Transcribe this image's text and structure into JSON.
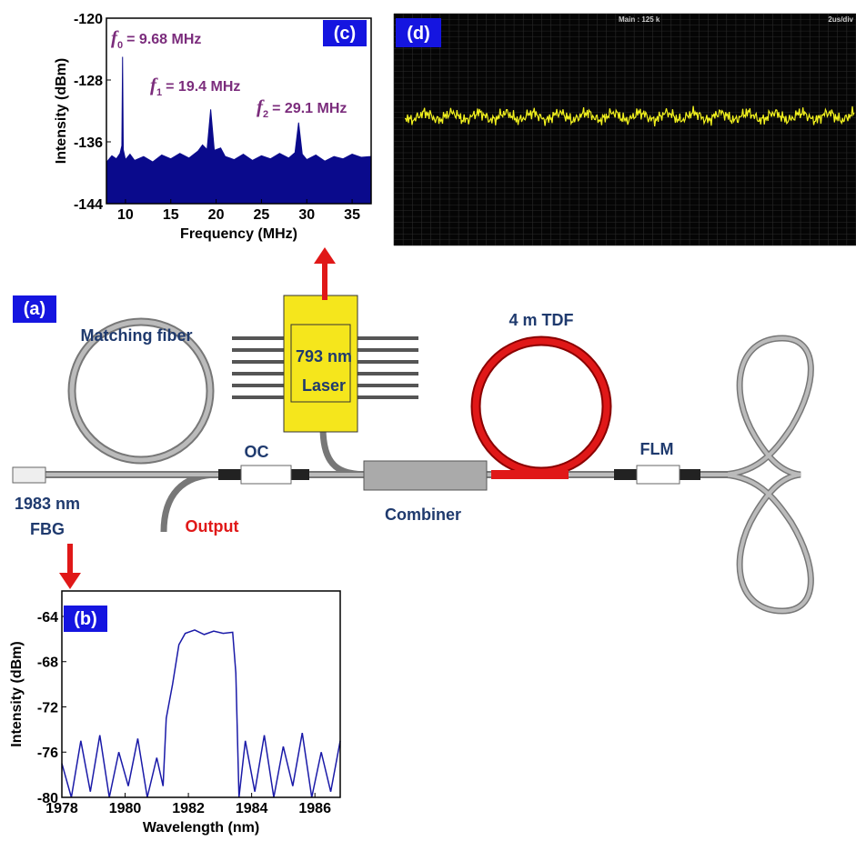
{
  "chart_data": [
    {
      "type": "area",
      "panel": "(c)",
      "xlabel": "Frequency (MHz)",
      "ylabel": "Intensity (dBm)",
      "color": "#0a0a8c",
      "x": [
        8,
        8.5,
        9,
        9.4,
        9.6,
        9.68,
        9.76,
        10,
        10.5,
        11,
        12,
        13,
        14,
        15,
        16,
        17,
        18,
        18.5,
        19,
        19.4,
        19.8,
        20.5,
        21,
        22,
        23,
        24,
        25,
        26,
        27,
        28,
        28.7,
        29.1,
        29.5,
        30,
        31,
        32,
        33,
        34,
        35,
        36,
        37
      ],
      "values": [
        -138.5,
        -137.8,
        -138.2,
        -137.5,
        -136.5,
        -125,
        -137,
        -138.3,
        -137.6,
        -138.4,
        -137.9,
        -138.6,
        -137.7,
        -138.2,
        -137.5,
        -138.1,
        -137.2,
        -136.4,
        -137,
        -131.8,
        -137.1,
        -136.8,
        -137.9,
        -138.3,
        -137.6,
        -138.4,
        -137.8,
        -138.2,
        -137.5,
        -138.1,
        -137.4,
        -133.5,
        -137.6,
        -138.3,
        -137.7,
        -138.5,
        -137.9,
        -138.2,
        -137.6,
        -138,
        -137.9
      ],
      "xlim": [
        7.9,
        37.1
      ],
      "xticks": [
        10,
        15,
        20,
        25,
        30,
        35
      ],
      "ylim": [
        -144,
        -120
      ],
      "yticks": [
        -144,
        -136,
        -128,
        -120
      ],
      "annotations": [
        {
          "symbol": "f",
          "subscript": "0",
          "text": "= 9.68 MHz"
        },
        {
          "symbol": "f",
          "subscript": "1",
          "text": "= 19.4 MHz"
        },
        {
          "symbol": "f",
          "subscript": "2",
          "text": "= 29.1 MHz"
        }
      ]
    },
    {
      "type": "line",
      "panel": "(b)",
      "xlabel": "Wavelength (nm)",
      "ylabel": "Intensity (dBm)",
      "color": "#1a1aa8",
      "x": [
        1978,
        1978.3,
        1978.6,
        1978.9,
        1979.2,
        1979.5,
        1979.8,
        1980.1,
        1980.4,
        1980.7,
        1981,
        1981.2,
        1981.3,
        1981.5,
        1981.7,
        1981.9,
        1982.2,
        1982.5,
        1982.8,
        1983.1,
        1983.4,
        1983.5,
        1983.6,
        1983.8,
        1984.1,
        1984.4,
        1984.7,
        1985,
        1985.3,
        1985.6,
        1985.9,
        1986.2,
        1986.5,
        1986.8
      ],
      "values": [
        -77,
        -80,
        -75,
        -79.5,
        -74.5,
        -80,
        -76,
        -79,
        -74.8,
        -80,
        -76.5,
        -79,
        -73,
        -70,
        -66.5,
        -65.5,
        -65.2,
        -65.6,
        -65.3,
        -65.5,
        -65.4,
        -69,
        -80,
        -75,
        -79.5,
        -74.5,
        -80,
        -75.5,
        -79,
        -74.3,
        -80,
        -76,
        -79.5,
        -75
      ],
      "xlim": [
        1978,
        1986.8
      ],
      "xticks": [
        1978,
        1980,
        1982,
        1984,
        1986
      ],
      "ylim": [
        -80,
        -61.75
      ],
      "yticks": [
        -80,
        -76,
        -72,
        -68,
        -64
      ]
    },
    {
      "type": "scope",
      "panel": "(d)",
      "header_left": "Main : 125 k",
      "header_right": "2us/div"
    }
  ],
  "diagram": {
    "panel": "(a)",
    "matching_fiber": "Matching fiber",
    "laser_line1": "793 nm",
    "laser_line2": "Laser",
    "tdf": "4 m TDF",
    "oc": "OC",
    "flm": "FLM",
    "fbg_line1": "1983 nm",
    "fbg_line2": "FBG",
    "output": "Output",
    "combiner": "Combiner"
  }
}
